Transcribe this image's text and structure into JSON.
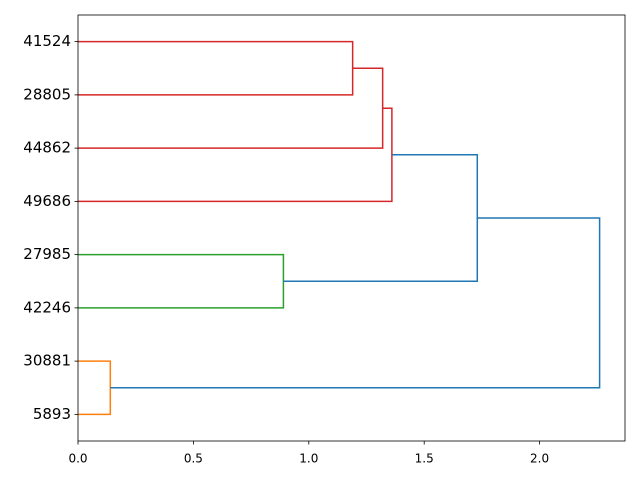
{
  "chart_data": {
    "type": "dendrogram",
    "categories": [
      "41524",
      "28805",
      "44862",
      "49686",
      "27985",
      "42246",
      "30881",
      "5893"
    ],
    "merges": [
      {
        "children": [
          0,
          1
        ],
        "height": 1.19,
        "color": "#d62728"
      },
      {
        "children": [
          8,
          2
        ],
        "height": 1.32,
        "color": "#d62728"
      },
      {
        "children": [
          9,
          3
        ],
        "height": 1.36,
        "color": "#d62728"
      },
      {
        "children": [
          4,
          5
        ],
        "height": 0.89,
        "color": "#2ca02c"
      },
      {
        "children": [
          6,
          7
        ],
        "height": 0.14,
        "color": "#ff7f0e"
      },
      {
        "children": [
          10,
          11
        ],
        "height": 1.73,
        "color": "#1f77b4"
      },
      {
        "children": [
          13,
          12
        ],
        "height": 2.26,
        "color": "#1f77b4"
      }
    ],
    "xlim": [
      0,
      2.37
    ],
    "xticks": [
      {
        "value": 0,
        "label": "0.0"
      },
      0.5,
      {
        "value": 1,
        "label": "1.0"
      },
      1.5,
      {
        "value": 2,
        "label": "2.0"
      }
    ],
    "grid": false
  }
}
